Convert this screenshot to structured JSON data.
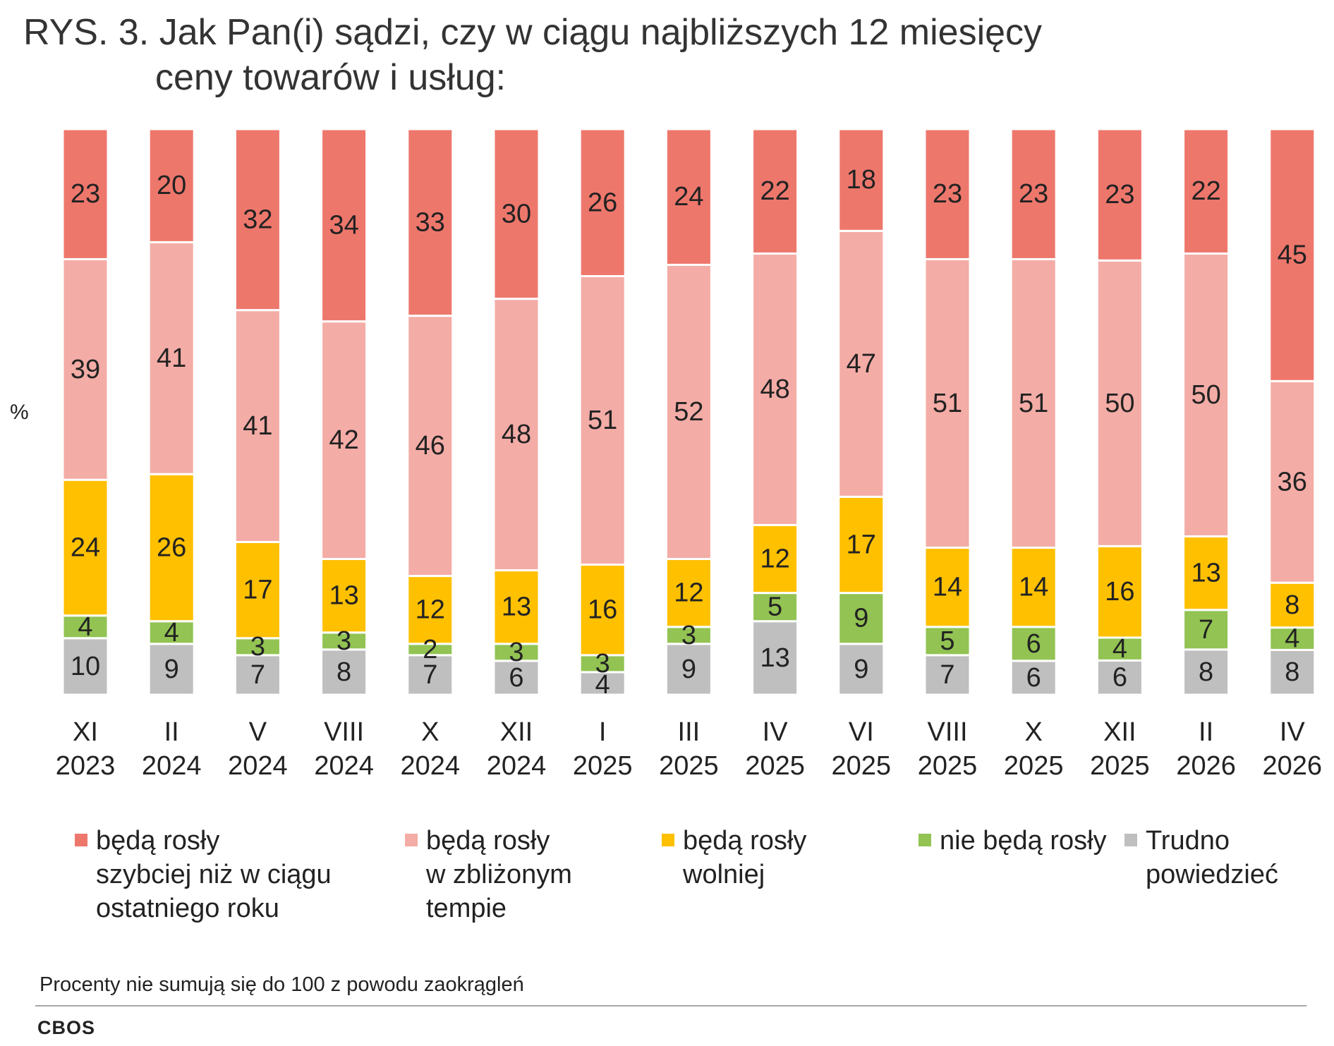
{
  "title": {
    "line1": "RYS. 3. Jak Pan(i) sądzi, czy w ciągu najbliższych 12 miesięcy",
    "line2": "ceny towarów i usług:"
  },
  "chart_data": {
    "type": "bar",
    "stacked": true,
    "orientation": "vertical",
    "ylabel": "%",
    "categories": [
      {
        "month": "XI",
        "year": "2023"
      },
      {
        "month": "II",
        "year": "2024"
      },
      {
        "month": "V",
        "year": "2024"
      },
      {
        "month": "VIII",
        "year": "2024"
      },
      {
        "month": "X",
        "year": "2024"
      },
      {
        "month": "XII",
        "year": "2024"
      },
      {
        "month": "I",
        "year": "2025"
      },
      {
        "month": "III",
        "year": "2025"
      },
      {
        "month": "IV",
        "year": "2025"
      },
      {
        "month": "VI",
        "year": "2025"
      },
      {
        "month": "VIII",
        "year": "2025"
      },
      {
        "month": "X",
        "year": "2025"
      },
      {
        "month": "XII",
        "year": "2025"
      },
      {
        "month": "II",
        "year": "2026"
      },
      {
        "month": "IV",
        "year": "2026"
      }
    ],
    "series": [
      {
        "name": "Trudno powiedzieć",
        "color": "#bfbfbf",
        "values": [
          10,
          9,
          7,
          8,
          7,
          6,
          4,
          9,
          13,
          9,
          7,
          6,
          6,
          8,
          8
        ]
      },
      {
        "name": "nie będą rosły",
        "color": "#92c353",
        "values": [
          4,
          4,
          3,
          3,
          2,
          3,
          3,
          3,
          5,
          9,
          5,
          6,
          4,
          7,
          4
        ]
      },
      {
        "name": "będą rosły wolniej",
        "color": "#ffc000",
        "values": [
          24,
          26,
          17,
          13,
          12,
          13,
          16,
          12,
          12,
          17,
          14,
          14,
          16,
          13,
          8
        ]
      },
      {
        "name": "będą rosły w zbliżonym tempie",
        "color": "#f4aca6",
        "values": [
          39,
          41,
          41,
          42,
          46,
          48,
          51,
          52,
          48,
          47,
          51,
          51,
          50,
          50,
          36
        ]
      },
      {
        "name": "będą rosły szybciej niż w ciągu ostatniego roku",
        "color": "#ee776c",
        "values": [
          23,
          20,
          32,
          34,
          33,
          30,
          26,
          24,
          22,
          18,
          23,
          23,
          23,
          22,
          45
        ]
      }
    ],
    "legend": [
      {
        "label": "będą rosły\nszybciej niż w ciągu\nostatniego roku",
        "color": "#ee776c"
      },
      {
        "label": "będą rosły\nw zbliżonym\ntempie",
        "color": "#f4aca6"
      },
      {
        "label": "będą rosły\nwolniej",
        "color": "#ffc000"
      },
      {
        "label": "nie będą rosły",
        "color": "#92c353"
      },
      {
        "label": "Trudno\npowiedzieć",
        "color": "#bfbfbf"
      }
    ],
    "legend_position": "bottom",
    "grid": false
  },
  "footnote": "Procenty nie sumują się do 100 z powodu zaokrągleń",
  "brand": "CBOS"
}
